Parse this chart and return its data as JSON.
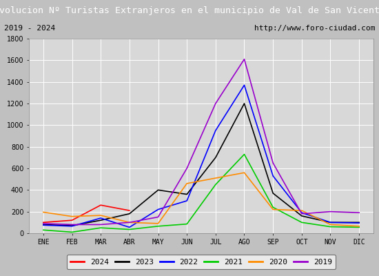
{
  "title": "Evolucion Nº Turistas Extranjeros en el municipio de Val de San Vicente",
  "subtitle_left": "2019 - 2024",
  "subtitle_right": "http://www.foro-ciudad.com",
  "title_bg_color": "#4f81c7",
  "title_text_color": "#ffffff",
  "subtitle_bg_color": "#f0f0f0",
  "subtitle_text_color": "#000000",
  "plot_bg_color": "#d8d8d8",
  "months": [
    "ENE",
    "FEB",
    "MAR",
    "ABR",
    "MAY",
    "JUN",
    "JUL",
    "AGO",
    "SEP",
    "OCT",
    "NOV",
    "DIC"
  ],
  "ylim": [
    0,
    1800
  ],
  "yticks": [
    0,
    200,
    400,
    600,
    800,
    1000,
    1200,
    1400,
    1600,
    1800
  ],
  "series": {
    "2024": {
      "color": "#ff0000",
      "data": [
        100,
        120,
        260,
        210,
        null,
        null,
        null,
        null,
        null,
        null,
        null,
        null
      ]
    },
    "2023": {
      "color": "#000000",
      "data": [
        80,
        70,
        120,
        180,
        400,
        360,
        700,
        1200,
        370,
        160,
        100,
        100
      ]
    },
    "2022": {
      "color": "#0000ff",
      "data": [
        75,
        65,
        140,
        55,
        220,
        300,
        950,
        1370,
        530,
        190,
        100,
        95
      ]
    },
    "2021": {
      "color": "#00cc00",
      "data": [
        30,
        10,
        50,
        35,
        65,
        85,
        450,
        730,
        240,
        100,
        60,
        55
      ]
    },
    "2020": {
      "color": "#ff8c00",
      "data": [
        195,
        155,
        165,
        100,
        90,
        460,
        510,
        560,
        220,
        210,
        80,
        65
      ]
    },
    "2019": {
      "color": "#9900cc",
      "data": [
        90,
        80,
        80,
        100,
        150,
        600,
        1200,
        1610,
        650,
        180,
        200,
        190
      ]
    }
  },
  "legend_order": [
    "2024",
    "2023",
    "2022",
    "2021",
    "2020",
    "2019"
  ]
}
